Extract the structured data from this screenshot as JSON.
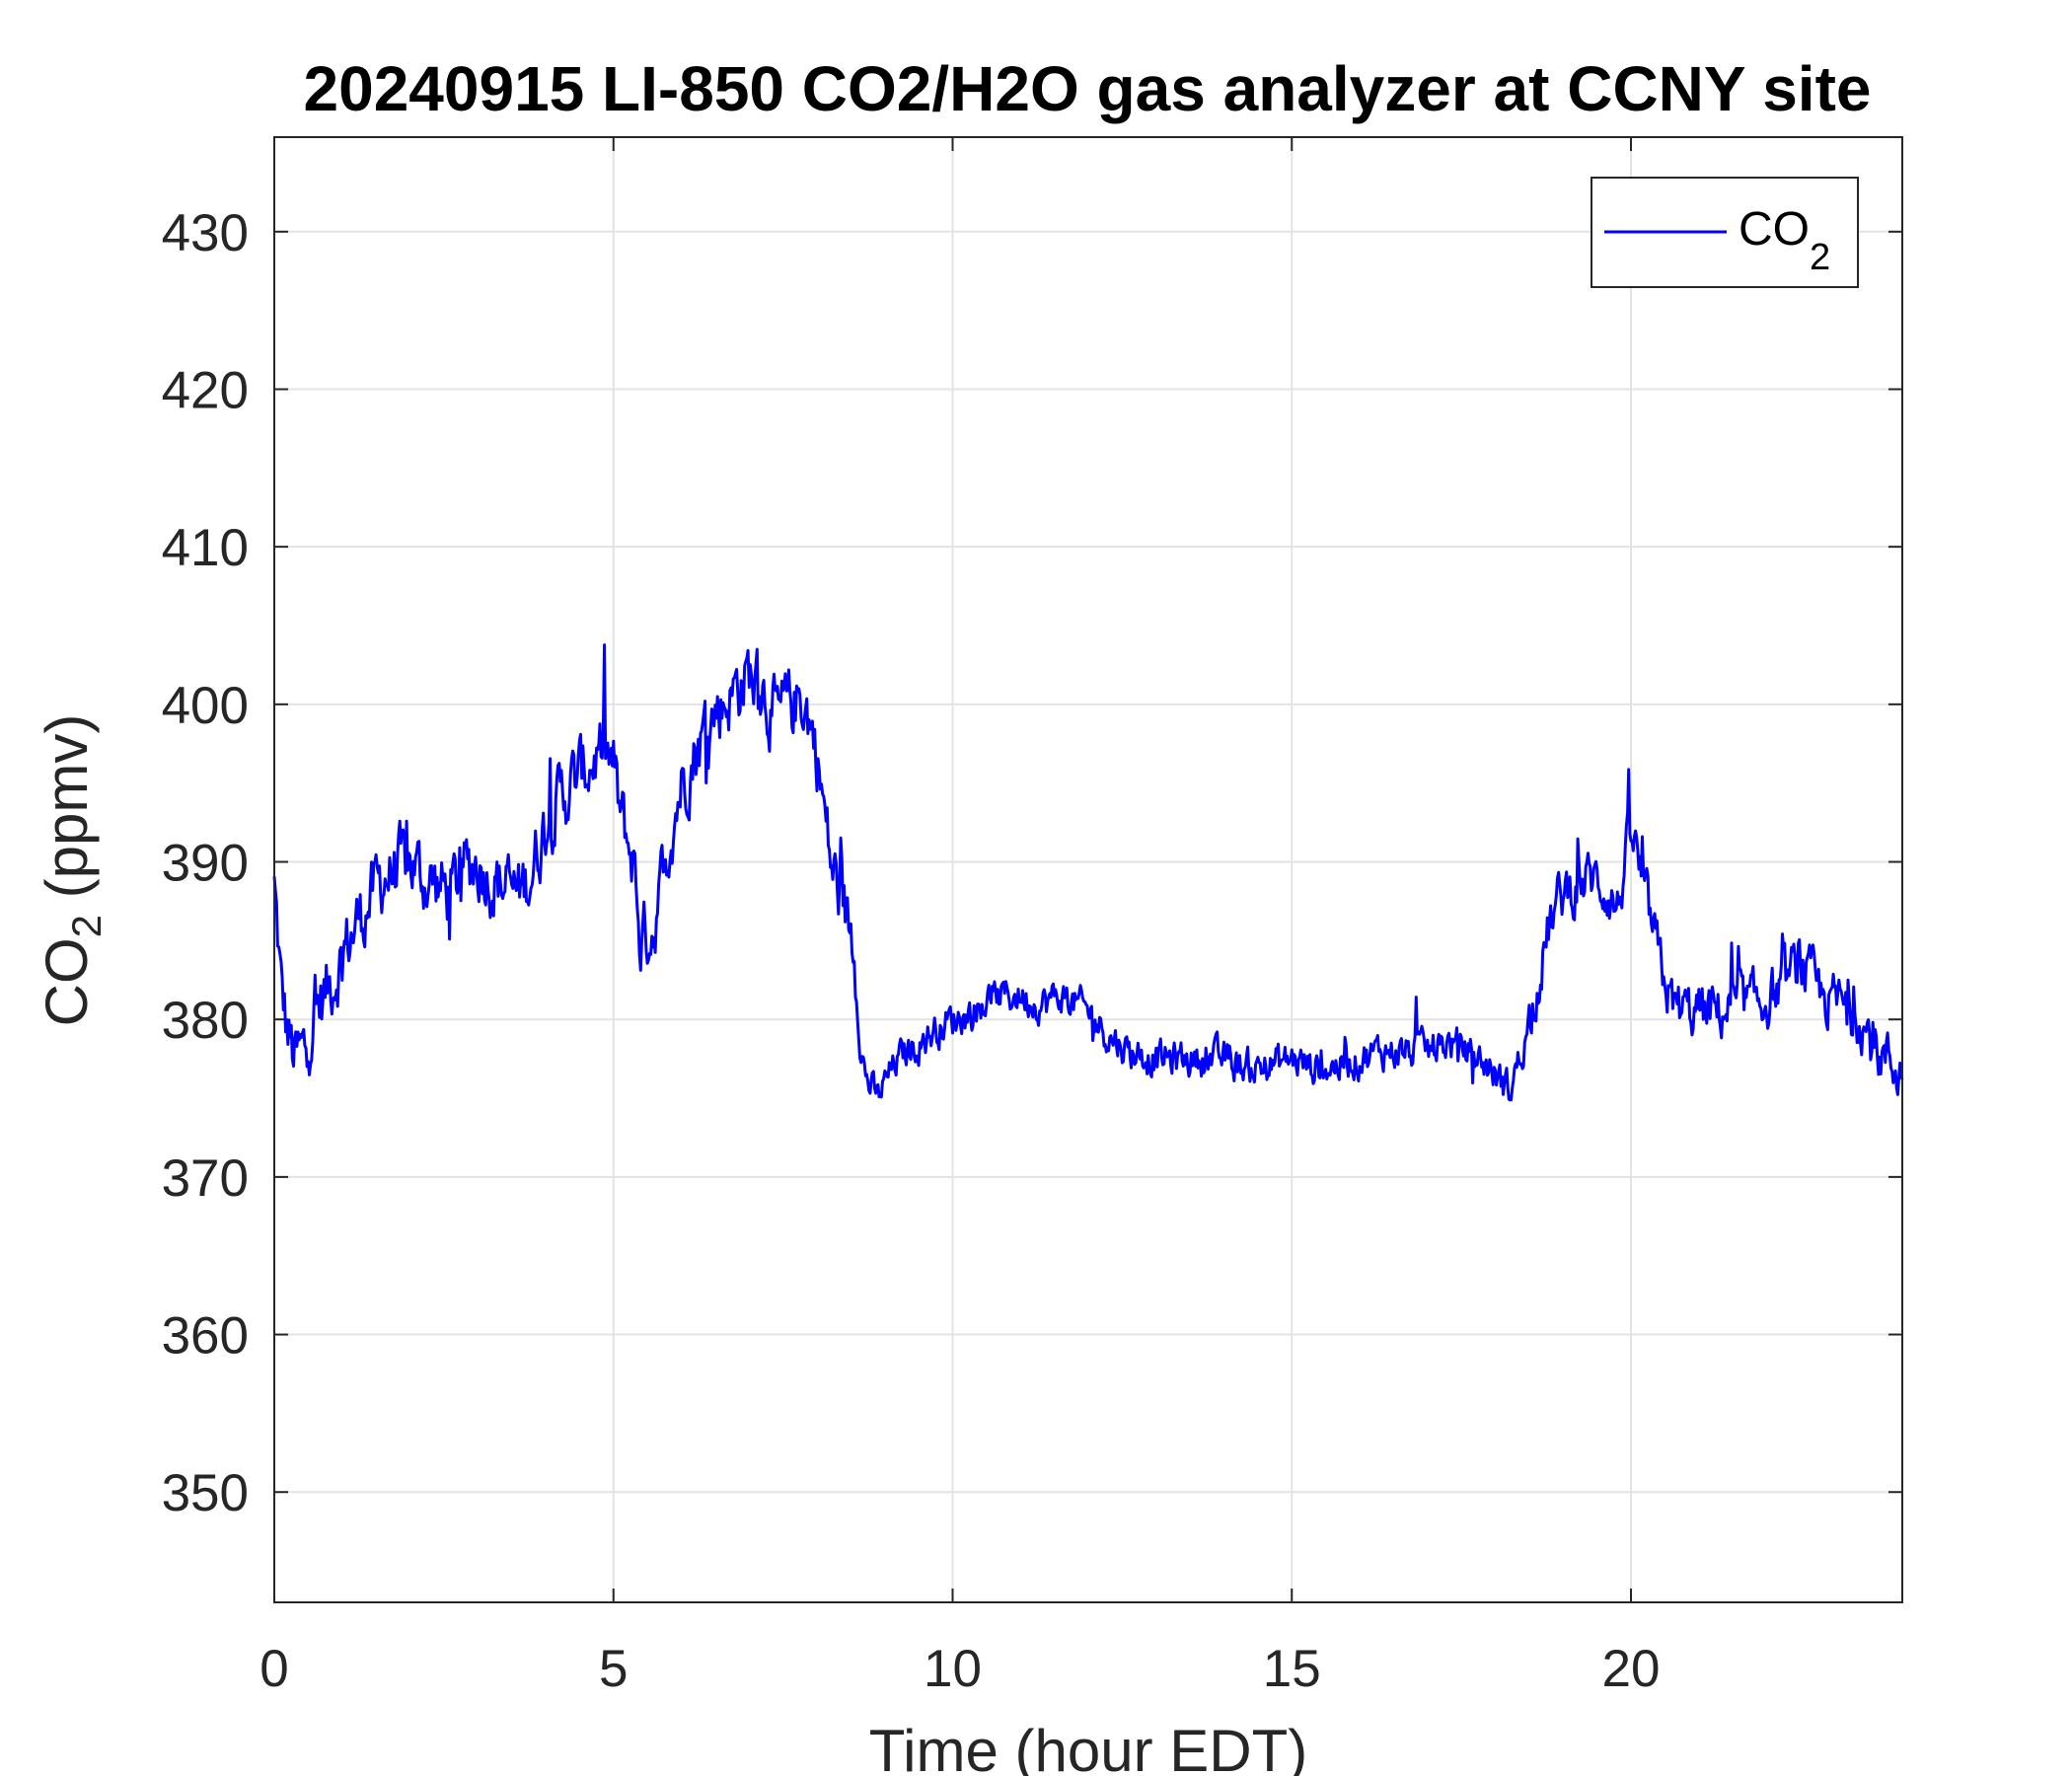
{
  "chart_data": {
    "type": "line",
    "title": "20240915 LI-850 CO2/H2O gas analyzer at CCNY site",
    "xlabel": {
      "text": "Time (hour EDT)"
    },
    "ylabel": {
      "base": "CO",
      "sub": "2",
      "rest": " (ppmv)"
    },
    "xlim": [
      0,
      24
    ],
    "ylim": [
      343,
      436
    ],
    "xticks": [
      0,
      5,
      10,
      15,
      20
    ],
    "yticks": [
      350,
      360,
      370,
      380,
      390,
      400,
      410,
      420,
      430
    ],
    "grid": true,
    "legend": {
      "position": "top-right",
      "entries": [
        {
          "base": "CO",
          "sub": "2"
        }
      ]
    },
    "series": [
      {
        "name": "CO2",
        "color": "#0000ff",
        "anchors": [
          [
            0.0,
            388.5
          ],
          [
            0.1,
            382
          ],
          [
            0.2,
            379
          ],
          [
            0.3,
            377.5
          ],
          [
            0.45,
            378
          ],
          [
            0.6,
            380.5
          ],
          [
            0.8,
            382
          ],
          [
            1.0,
            384
          ],
          [
            1.2,
            386
          ],
          [
            1.4,
            387.5
          ],
          [
            1.6,
            389
          ],
          [
            1.8,
            389.5
          ],
          [
            2.0,
            390
          ],
          [
            2.2,
            389
          ],
          [
            2.4,
            388.5
          ],
          [
            2.6,
            388
          ],
          [
            2.8,
            389.5
          ],
          [
            3.0,
            390
          ],
          [
            3.2,
            389
          ],
          [
            3.4,
            388.5
          ],
          [
            3.6,
            388
          ],
          [
            3.8,
            389.5
          ],
          [
            4.0,
            392.5
          ],
          [
            4.2,
            394
          ],
          [
            4.4,
            395
          ],
          [
            4.6,
            396
          ],
          [
            4.8,
            397
          ],
          [
            5.0,
            396
          ],
          [
            5.1,
            393
          ],
          [
            5.3,
            390
          ],
          [
            5.4,
            385
          ],
          [
            5.6,
            386
          ],
          [
            5.8,
            391
          ],
          [
            6.0,
            395
          ],
          [
            6.2,
            397
          ],
          [
            6.5,
            399.5
          ],
          [
            6.8,
            401
          ],
          [
            7.0,
            402
          ],
          [
            7.2,
            401
          ],
          [
            7.4,
            399
          ],
          [
            7.6,
            400
          ],
          [
            7.8,
            400.5
          ],
          [
            8.0,
            397
          ],
          [
            8.2,
            390
          ],
          [
            8.4,
            387
          ],
          [
            8.55,
            385
          ],
          [
            8.65,
            378
          ],
          [
            8.75,
            376
          ],
          [
            8.9,
            375
          ],
          [
            9.0,
            376
          ],
          [
            9.2,
            377.5
          ],
          [
            9.5,
            378.5
          ],
          [
            9.8,
            379.5
          ],
          [
            10.0,
            380
          ],
          [
            10.3,
            380.5
          ],
          [
            10.6,
            381.5
          ],
          [
            11.0,
            381.5
          ],
          [
            11.3,
            381
          ],
          [
            11.6,
            381.5
          ],
          [
            12.0,
            380.5
          ],
          [
            12.3,
            379
          ],
          [
            12.6,
            378
          ],
          [
            13.0,
            377.5
          ],
          [
            13.3,
            377.5
          ],
          [
            13.6,
            377.5
          ],
          [
            14.0,
            377.5
          ],
          [
            14.3,
            377
          ],
          [
            14.6,
            377
          ],
          [
            15.0,
            377.5
          ],
          [
            15.3,
            377
          ],
          [
            15.6,
            377
          ],
          [
            16.0,
            377.5
          ],
          [
            16.3,
            378
          ],
          [
            16.6,
            378
          ],
          [
            17.0,
            378
          ],
          [
            17.3,
            378.5
          ],
          [
            17.6,
            378
          ],
          [
            17.9,
            377
          ],
          [
            18.2,
            375.5
          ],
          [
            18.4,
            378
          ],
          [
            18.6,
            382
          ],
          [
            18.8,
            386
          ],
          [
            19.0,
            388
          ],
          [
            19.2,
            388.5
          ],
          [
            19.4,
            389
          ],
          [
            19.6,
            388.5
          ],
          [
            19.8,
            387
          ],
          [
            20.0,
            392
          ],
          [
            20.2,
            388
          ],
          [
            20.4,
            384
          ],
          [
            20.6,
            381
          ],
          [
            20.8,
            380.5
          ],
          [
            21.0,
            380.5
          ],
          [
            21.3,
            380.5
          ],
          [
            21.6,
            381
          ],
          [
            21.9,
            381
          ],
          [
            22.2,
            382
          ],
          [
            22.5,
            383.5
          ],
          [
            22.8,
            381.5
          ],
          [
            23.1,
            381
          ],
          [
            23.4,
            380
          ],
          [
            23.6,
            378
          ],
          [
            23.8,
            377.5
          ],
          [
            24.0,
            376.5
          ]
        ]
      }
    ]
  }
}
